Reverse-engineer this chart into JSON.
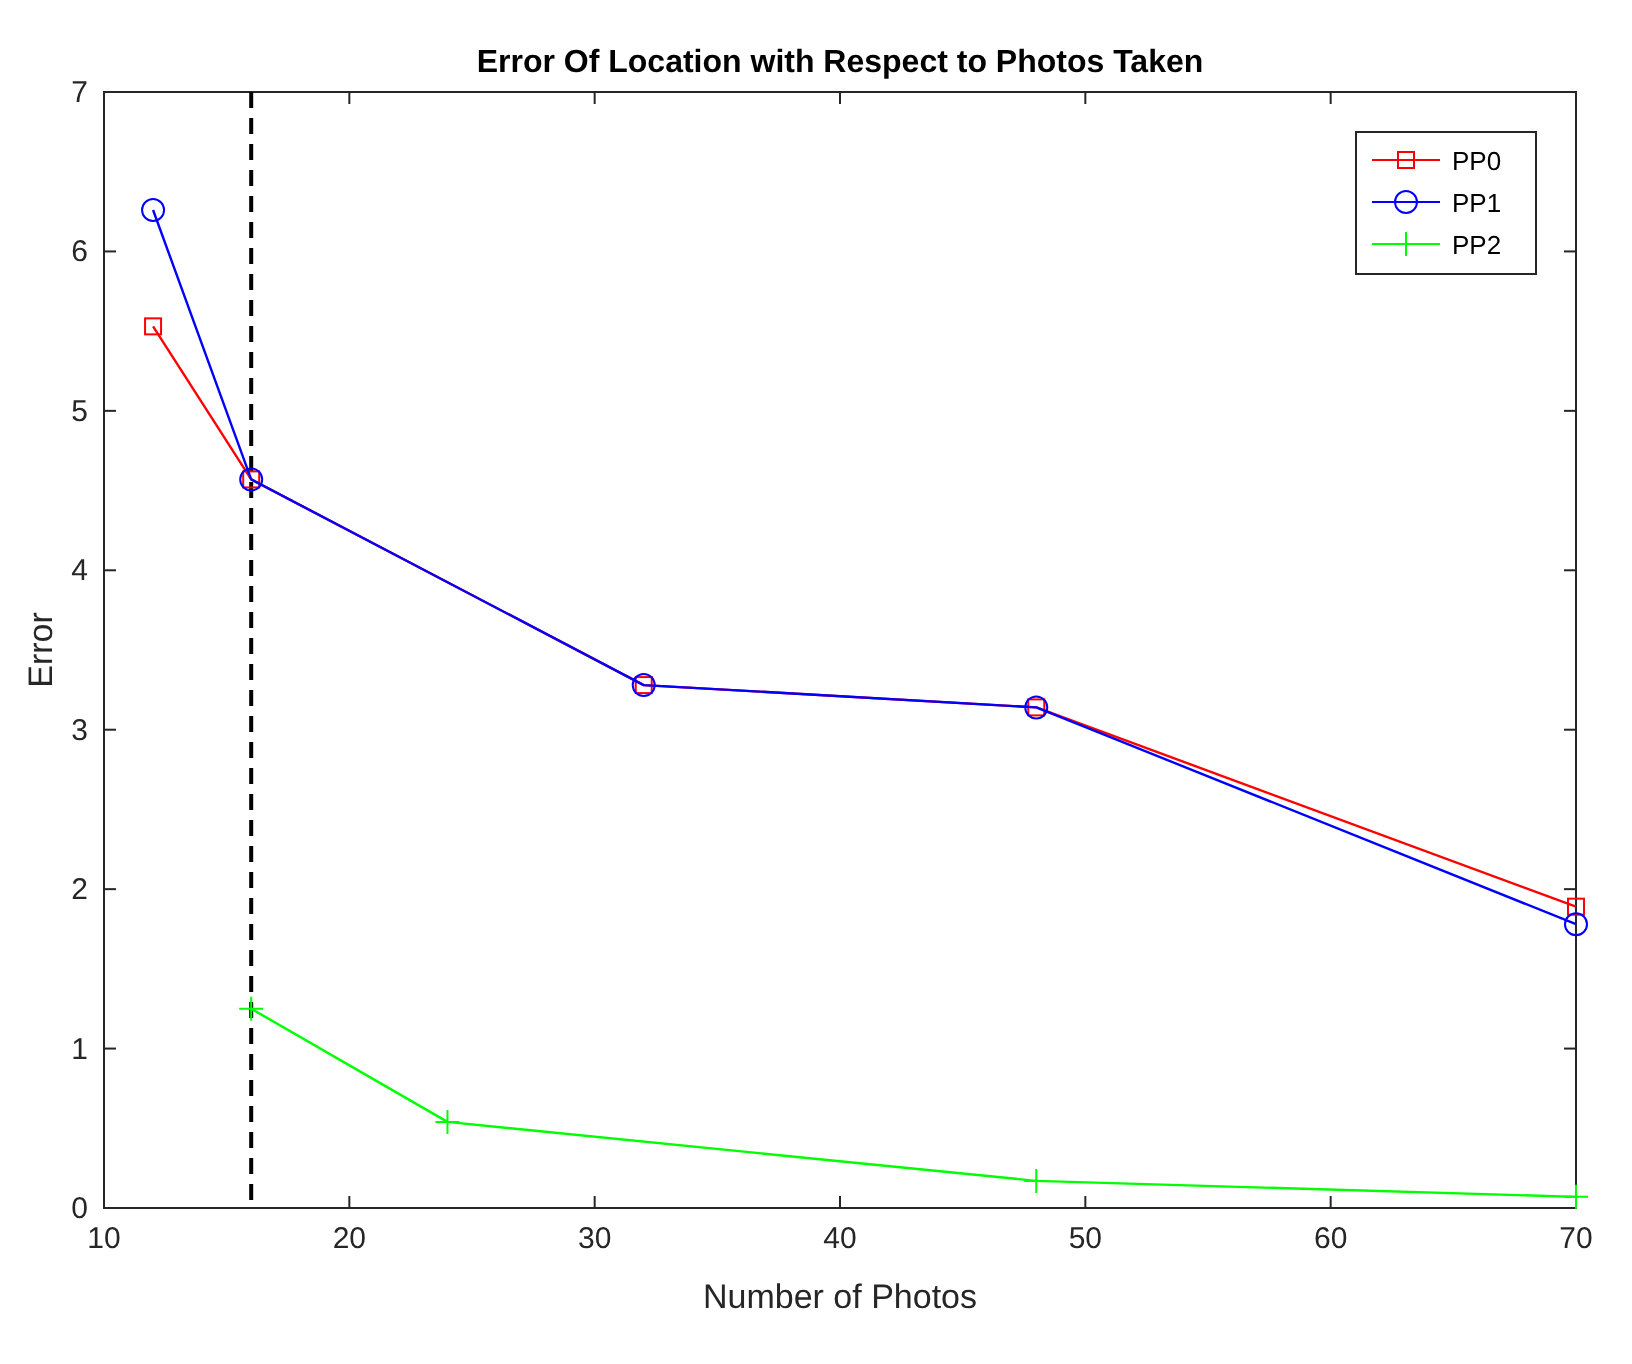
{
  "chart_data": {
    "type": "line",
    "title": "Error Of Location with Respect to Photos Taken",
    "xlabel": "Number of Photos",
    "ylabel": "Error",
    "series": [
      {
        "name": "PP0",
        "color": "#ff0000",
        "marker": "square",
        "x": [
          12,
          16,
          32,
          48,
          70
        ],
        "values": [
          5.53,
          4.57,
          3.28,
          3.14,
          1.89
        ]
      },
      {
        "name": "PP1",
        "color": "#0000ff",
        "marker": "circle",
        "x": [
          12,
          16,
          32,
          48,
          70
        ],
        "values": [
          6.26,
          4.57,
          3.28,
          3.14,
          1.78
        ]
      },
      {
        "name": "PP2",
        "color": "#00ff00",
        "marker": "cross",
        "x": [
          16,
          24,
          48,
          70
        ],
        "values": [
          1.25,
          0.54,
          0.17,
          0.07
        ]
      }
    ],
    "xlim": [
      10,
      70
    ],
    "xticks": [
      10,
      20,
      30,
      40,
      50,
      60,
      70
    ],
    "ylim": [
      0,
      7
    ],
    "yticks": [
      0,
      1,
      2,
      3,
      4,
      5,
      6,
      7
    ],
    "ref_lines": [
      {
        "axis": "x",
        "value": 16,
        "color": "#000000",
        "line_style": "dashed"
      }
    ],
    "legend": "top right",
    "grid": false
  }
}
